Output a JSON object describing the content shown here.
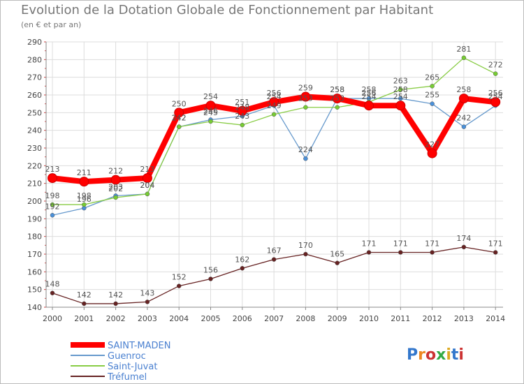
{
  "chart_data": {
    "type": "line",
    "title": "Evolution de la Dotation Globale de Fonctionnement par Habitant",
    "subtitle": "(en € et par an)",
    "xlabel": "",
    "ylabel": "",
    "ylim": [
      140,
      290
    ],
    "ytick_step": 10,
    "grid": true,
    "x": [
      "2000",
      "2001",
      "2002",
      "2003",
      "2004",
      "2005",
      "2006",
      "2007",
      "2008",
      "2009",
      "2010",
      "2011",
      "2012",
      "2013",
      "2014"
    ],
    "series": [
      {
        "name": "SAINT-MADEN",
        "color": "#ff0000",
        "values": [
          213,
          211,
          212,
          213,
          250,
          254,
          251,
          256,
          259,
          258,
          254,
          254,
          227,
          258,
          256
        ]
      },
      {
        "name": "Guenroc",
        "color": "#6699cc",
        "values": [
          192,
          196,
          203,
          204,
          242,
          246,
          248,
          254,
          224,
          258,
          258,
          258,
          255,
          242,
          254
        ]
      },
      {
        "name": "Saint-Juvat",
        "color": "#88cc44",
        "values": [
          198,
          198,
          202,
          204,
          242,
          245,
          243,
          249,
          253,
          253,
          256,
          263,
          265,
          281,
          272
        ]
      },
      {
        "name": "Tréfumel",
        "color": "#662222",
        "values": [
          148,
          142,
          142,
          143,
          152,
          156,
          162,
          167,
          170,
          165,
          171,
          171,
          171,
          174,
          171
        ]
      }
    ]
  },
  "logo": {
    "text": "Proxiti"
  }
}
